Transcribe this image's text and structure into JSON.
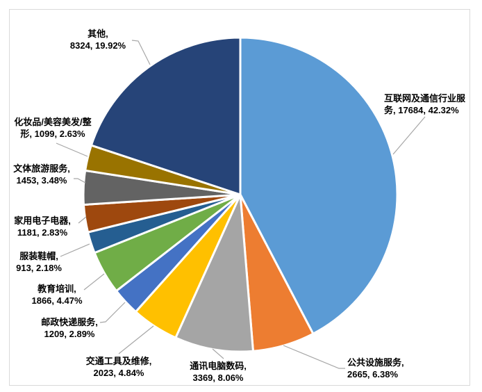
{
  "chart_data": {
    "type": "pie",
    "title": "",
    "legend": "none",
    "direction": "clockwise",
    "start_angle_deg": 0,
    "background_color": "#FFFFFF",
    "frame_border_color": "#D9D9D9",
    "slice_border_color": "#FFFFFF",
    "leader_line_color": "#A6A6A6",
    "label_text_color": "#000000",
    "categories": [
      "互联网及通信行业服务",
      "公共设施服务",
      "通讯电脑数码",
      "交通工具及维修",
      "邮政快递服务",
      "教育培训",
      "服装鞋帽",
      "家用电子电器",
      "文体旅游服务",
      "化妆品/美容美发/整形",
      "其他"
    ],
    "values": [
      17684,
      2665,
      3369,
      2023,
      1209,
      1866,
      913,
      1181,
      1453,
      1099,
      8324
    ],
    "slices": [
      {
        "name": "互联网及通信行业服务",
        "value": 17684,
        "percent": "42.32%",
        "color": "#5B9BD5",
        "label_lines": [
          "互联网及通信行业服",
          "务, 17684, 42.32%"
        ]
      },
      {
        "name": "公共设施服务",
        "value": 2665,
        "percent": "6.38%",
        "color": "#ED7D31",
        "label_lines": [
          "公共设施服务,",
          "2665, 6.38%"
        ]
      },
      {
        "name": "通讯电脑数码",
        "value": 3369,
        "percent": "8.06%",
        "color": "#A5A5A5",
        "label_lines": [
          "通讯电脑数码,",
          "3369, 8.06%"
        ]
      },
      {
        "name": "交通工具及维修",
        "value": 2023,
        "percent": "4.84%",
        "color": "#FFC000",
        "label_lines": [
          "交通工具及维修,",
          "2023, 4.84%"
        ]
      },
      {
        "name": "邮政快递服务",
        "value": 1209,
        "percent": "2.89%",
        "color": "#4472C4",
        "label_lines": [
          "邮政快递服务,",
          "1209, 2.89%"
        ]
      },
      {
        "name": "教育培训",
        "value": 1866,
        "percent": "4.47%",
        "color": "#70AD47",
        "label_lines": [
          "教育培训,",
          "1866, 4.47%"
        ]
      },
      {
        "name": "服装鞋帽",
        "value": 913,
        "percent": "2.18%",
        "color": "#255E91",
        "label_lines": [
          "服装鞋帽,",
          "913, 2.18%"
        ]
      },
      {
        "name": "家用电子电器",
        "value": 1181,
        "percent": "2.83%",
        "color": "#9E480E",
        "label_lines": [
          "家用电子电器,",
          "1181, 2.83%"
        ]
      },
      {
        "name": "文体旅游服务",
        "value": 1453,
        "percent": "3.48%",
        "color": "#636363",
        "label_lines": [
          "文体旅游服务,",
          "1453, 3.48%"
        ]
      },
      {
        "name": "化妆品/美容美发/整形",
        "value": 1099,
        "percent": "2.63%",
        "color": "#997300",
        "label_lines": [
          "化妆品/美容美发/整",
          "形, 1099, 2.63%"
        ]
      },
      {
        "name": "其他",
        "value": 8324,
        "percent": "19.92%",
        "color": "#264478",
        "label_lines": [
          "其他,",
          "8324, 19.92%"
        ]
      }
    ]
  }
}
